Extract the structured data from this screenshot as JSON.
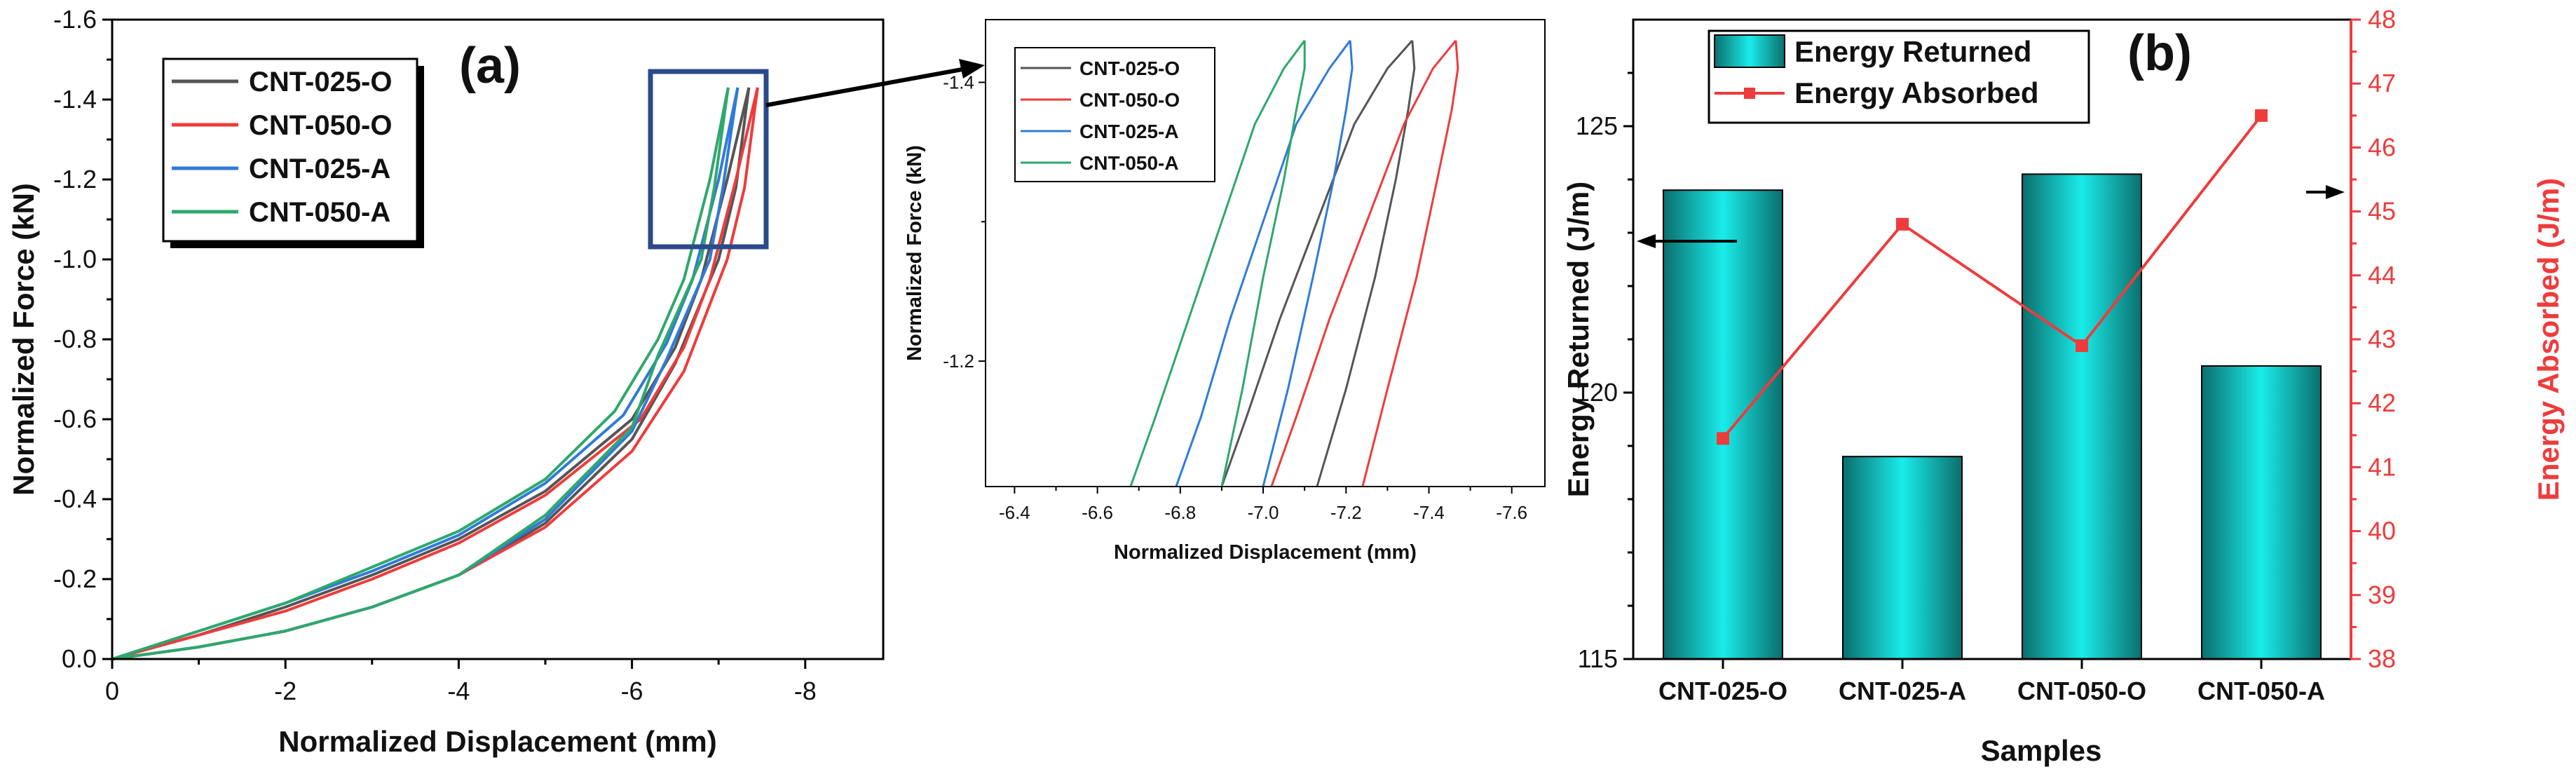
{
  "figure": {
    "panel_a_label": "(a)",
    "panel_b_label": "(b)"
  },
  "colors": {
    "CNT-025-O": "#555555",
    "CNT-050-O": "#ef3b3b",
    "CNT-025-A": "#2f7bd9",
    "CNT-050-A": "#2ea86b",
    "bar_fill": "#19e0dc",
    "energy_absorbed": "#ef3b3b",
    "zoom_box": "#2b4a8b"
  },
  "chart_data": [
    {
      "id": "panel-a-main",
      "type": "line",
      "xlabel": "Normalized Displacement (mm)",
      "ylabel": "Normalized Force (kN)",
      "xlim": [
        0,
        -8.9
      ],
      "ylim": [
        0,
        -1.6
      ],
      "xticks": [
        0,
        -2,
        -4,
        -6,
        -8
      ],
      "xtick_labels": [
        "0",
        "-2",
        "-4",
        "-6",
        "-8"
      ],
      "yticks": [
        0,
        -0.2,
        -0.4,
        -0.6,
        -0.8,
        -1.0,
        -1.2,
        -1.4,
        -1.6
      ],
      "ytick_labels": [
        "0.0",
        "-0.2",
        "-0.4",
        "-0.6",
        "-0.8",
        "-1.0",
        "-1.2",
        "-1.4",
        "-1.6"
      ],
      "legend_position": "top-left",
      "series": [
        {
          "name": "CNT-025-O",
          "loading": {
            "x": [
              0,
              -1,
              -2,
              -3,
              -4,
              -5,
              -6,
              -6.5,
              -7.0,
              -7.2,
              -7.35
            ],
            "y": [
              0,
              -0.03,
              -0.07,
              -0.13,
              -0.21,
              -0.34,
              -0.55,
              -0.74,
              -1.0,
              -1.18,
              -1.43
            ]
          },
          "unloading": {
            "x": [
              -7.35,
              -7.1,
              -6.8,
              -6.5,
              -6,
              -5,
              -4,
              -3,
              -2,
              -1,
              0
            ],
            "y": [
              -1.43,
              -1.2,
              -0.95,
              -0.78,
              -0.6,
              -0.42,
              -0.3,
              -0.21,
              -0.13,
              -0.06,
              0
            ]
          }
        },
        {
          "name": "CNT-050-O",
          "loading": {
            "x": [
              0,
              -1,
              -2,
              -3,
              -4,
              -5,
              -6,
              -6.6,
              -7.1,
              -7.3,
              -7.45
            ],
            "y": [
              0,
              -0.03,
              -0.07,
              -0.13,
              -0.21,
              -0.33,
              -0.52,
              -0.72,
              -1.0,
              -1.18,
              -1.43
            ]
          },
          "unloading": {
            "x": [
              -7.45,
              -7.2,
              -6.9,
              -6.6,
              -6.1,
              -5,
              -4,
              -3,
              -2,
              -1,
              0
            ],
            "y": [
              -1.43,
              -1.2,
              -0.95,
              -0.78,
              -0.6,
              -0.41,
              -0.29,
              -0.2,
              -0.12,
              -0.06,
              0
            ]
          }
        },
        {
          "name": "CNT-025-A",
          "loading": {
            "x": [
              0,
              -1,
              -2,
              -3,
              -4,
              -5,
              -6,
              -6.4,
              -6.9,
              -7.05,
              -7.22
            ],
            "y": [
              0,
              -0.03,
              -0.07,
              -0.13,
              -0.21,
              -0.35,
              -0.57,
              -0.75,
              -1.0,
              -1.18,
              -1.43
            ]
          },
          "unloading": {
            "x": [
              -7.22,
              -7.0,
              -6.7,
              -6.4,
              -5.9,
              -5,
              -4,
              -3,
              -2,
              -1,
              0
            ],
            "y": [
              -1.43,
              -1.2,
              -0.95,
              -0.79,
              -0.61,
              -0.44,
              -0.31,
              -0.22,
              -0.14,
              -0.07,
              0
            ]
          }
        },
        {
          "name": "CNT-050-A",
          "loading": {
            "x": [
              0,
              -1,
              -2,
              -3,
              -4,
              -5,
              -6,
              -6.3,
              -6.8,
              -6.95,
              -7.11
            ],
            "y": [
              0,
              -0.03,
              -0.07,
              -0.13,
              -0.21,
              -0.36,
              -0.58,
              -0.76,
              -1.0,
              -1.18,
              -1.43
            ]
          },
          "unloading": {
            "x": [
              -7.11,
              -6.9,
              -6.6,
              -6.3,
              -5.8,
              -5,
              -4,
              -3,
              -2,
              -1,
              0
            ],
            "y": [
              -1.43,
              -1.2,
              -0.95,
              -0.8,
              -0.62,
              -0.45,
              -0.32,
              -0.23,
              -0.14,
              -0.07,
              0
            ]
          }
        }
      ]
    },
    {
      "id": "panel-a-inset",
      "type": "line",
      "xlabel": "Normalized Displacement (mm)",
      "ylabel": "Normalized Force (kN)",
      "xlim": [
        -6.33,
        -7.68
      ],
      "ylim": [
        -1.11,
        -1.445
      ],
      "xticks": [
        -6.4,
        -6.6,
        -6.8,
        -7.0,
        -7.2,
        -7.4,
        -7.6
      ],
      "xtick_labels": [
        "-6.4",
        "-6.6",
        "-6.8",
        "-7.0",
        "-7.2",
        "-7.4",
        "-7.6"
      ],
      "yticks": [
        -1.2,
        -1.4
      ],
      "ytick_labels": [
        "-1.2",
        "-1.4"
      ],
      "legend_position": "top-center",
      "series": [
        {
          "name": "CNT-025-O",
          "loading": {
            "x": [
              -7.13,
              -7.2,
              -7.27,
              -7.32,
              -7.35,
              -7.365,
              -7.36
            ],
            "y": [
              -1.11,
              -1.18,
              -1.26,
              -1.33,
              -1.38,
              -1.41,
              -1.43
            ]
          },
          "unloading": {
            "x": [
              -7.36,
              -7.3,
              -7.22,
              -7.13,
              -7.04,
              -6.96,
              -6.9
            ],
            "y": [
              -1.43,
              -1.41,
              -1.37,
              -1.3,
              -1.23,
              -1.16,
              -1.11
            ]
          }
        },
        {
          "name": "CNT-050-O",
          "loading": {
            "x": [
              -7.24,
              -7.3,
              -7.37,
              -7.42,
              -7.455,
              -7.47,
              -7.465
            ],
            "y": [
              -1.11,
              -1.18,
              -1.26,
              -1.33,
              -1.38,
              -1.41,
              -1.43
            ]
          },
          "unloading": {
            "x": [
              -7.465,
              -7.41,
              -7.34,
              -7.25,
              -7.16,
              -7.08,
              -7.02
            ],
            "y": [
              -1.43,
              -1.41,
              -1.37,
              -1.3,
              -1.23,
              -1.16,
              -1.11
            ]
          }
        },
        {
          "name": "CNT-025-A",
          "loading": {
            "x": [
              -7.0,
              -7.06,
              -7.12,
              -7.17,
              -7.2,
              -7.215,
              -7.21
            ],
            "y": [
              -1.11,
              -1.18,
              -1.26,
              -1.33,
              -1.38,
              -1.41,
              -1.43
            ]
          },
          "unloading": {
            "x": [
              -7.21,
              -7.16,
              -7.08,
              -7.0,
              -6.92,
              -6.85,
              -6.79
            ],
            "y": [
              -1.43,
              -1.41,
              -1.37,
              -1.3,
              -1.23,
              -1.16,
              -1.11
            ]
          }
        },
        {
          "name": "CNT-050-A",
          "loading": {
            "x": [
              -6.9,
              -6.95,
              -7.0,
              -7.05,
              -7.08,
              -7.1,
              -7.1
            ],
            "y": [
              -1.11,
              -1.18,
              -1.26,
              -1.33,
              -1.38,
              -1.41,
              -1.43
            ]
          },
          "unloading": {
            "x": [
              -7.1,
              -7.05,
              -6.98,
              -6.9,
              -6.82,
              -6.74,
              -6.68
            ],
            "y": [
              -1.43,
              -1.41,
              -1.37,
              -1.3,
              -1.23,
              -1.16,
              -1.11
            ]
          }
        }
      ]
    },
    {
      "id": "panel-b",
      "type": "bar",
      "title": "",
      "xlabel": "Samples",
      "ylabel": "Energy Returned (J/m)",
      "ylabel_right": "Energy Absorbed (J/m)",
      "categories": [
        "CNT-025-O",
        "CNT-025-A",
        "CNT-050-O",
        "CNT-050-A"
      ],
      "ylim": [
        115,
        127
      ],
      "yticks": [
        115,
        120,
        125
      ],
      "ytick_labels": [
        "115",
        "120",
        "125"
      ],
      "ylim_right": [
        38,
        48
      ],
      "yticks_right": [
        38,
        39,
        40,
        41,
        42,
        43,
        44,
        45,
        46,
        47,
        48
      ],
      "ytick_labels_right": [
        "38",
        "39",
        "40",
        "41",
        "42",
        "43",
        "44",
        "45",
        "46",
        "47",
        "48"
      ],
      "legend_position": "top-left",
      "series": [
        {
          "name": "Energy Returned",
          "kind": "bar",
          "axis": "left",
          "values": [
            123.8,
            118.8,
            124.1,
            120.5
          ]
        },
        {
          "name": "Energy Absorbed",
          "kind": "line",
          "axis": "right",
          "values": [
            41.45,
            44.8,
            42.9,
            46.5
          ]
        }
      ]
    }
  ]
}
